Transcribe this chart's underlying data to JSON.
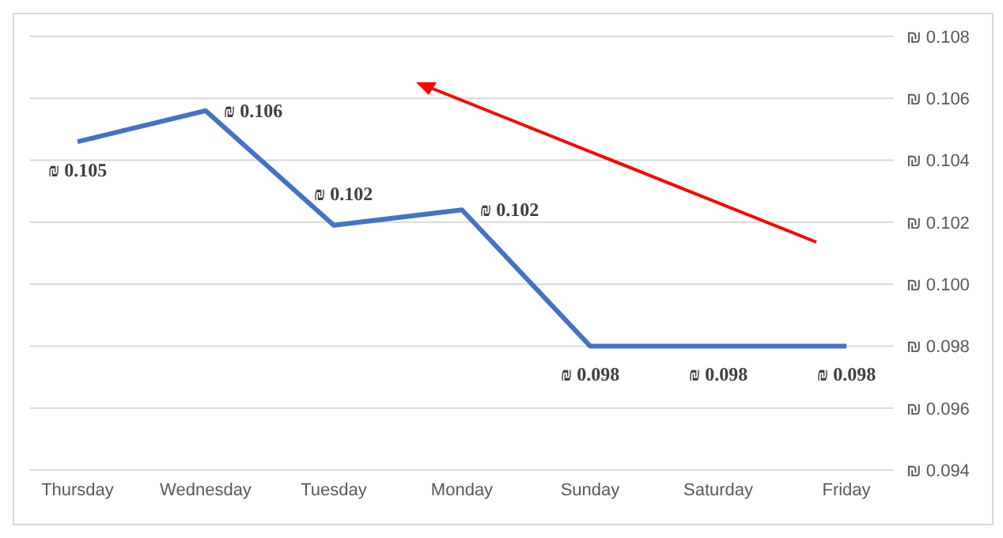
{
  "chart_data": {
    "type": "line",
    "categories": [
      "Thursday",
      "Wednesday",
      "Tuesday",
      "Monday",
      "Sunday",
      "Saturday",
      "Friday"
    ],
    "series": [
      {
        "color": "#4472c4",
        "values": [
          0.1046,
          0.1056,
          0.1019,
          0.1024,
          0.098,
          0.098,
          0.098
        ],
        "value_labels": [
          "₪ 0.105",
          "₪ 0.106",
          "₪ 0.102",
          "₪ 0.102",
          "₪ 0.098",
          "₪ 0.098",
          "₪ 0.098"
        ]
      }
    ],
    "ylim": [
      0.094,
      0.108
    ],
    "yticks": [
      {
        "value": 0.094,
        "label": "₪ 0.094"
      },
      {
        "value": 0.096,
        "label": "₪ 0.096"
      },
      {
        "value": 0.098,
        "label": "₪ 0.098"
      },
      {
        "value": 0.1,
        "label": "₪ 0.100"
      },
      {
        "value": 0.102,
        "label": "₪ 0.102"
      },
      {
        "value": 0.104,
        "label": "₪ 0.104"
      },
      {
        "value": 0.106,
        "label": "₪ 0.106"
      },
      {
        "value": 0.108,
        "label": "₪ 0.108"
      }
    ],
    "grid": "y",
    "marker": "none",
    "line_style": "solid",
    "legend": false
  }
}
